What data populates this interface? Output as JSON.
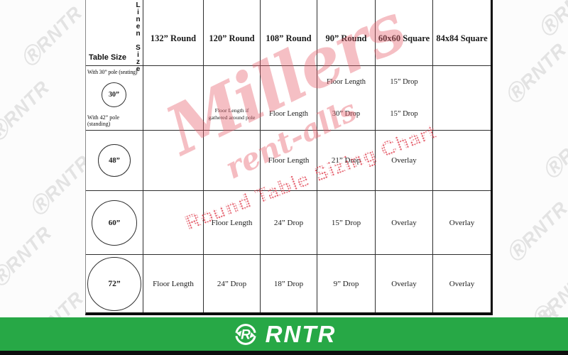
{
  "document": {
    "corner": {
      "row_label": "Table Size",
      "col_label": "Linen Size"
    },
    "columns": [
      "132” Round",
      "120” Round",
      "108” Round",
      "90” Round",
      "60x60 Square",
      "84x84 Square"
    ],
    "rows": [
      {
        "size": "30”",
        "note_top": "With 30” pole (seating)",
        "note_bottom": "With 42” pole (standing)",
        "seating": [
          "",
          "",
          "",
          "Floor Length",
          "15” Drop",
          ""
        ],
        "standing": [
          "",
          "Floor Length if gathered around pole",
          "Floor Length",
          "30” Drop",
          "15” Drop",
          ""
        ]
      },
      {
        "size": "48”",
        "cells": [
          "",
          "",
          "Floor Length",
          "21” Drop",
          "Overlay",
          ""
        ]
      },
      {
        "size": "60”",
        "cells": [
          "",
          "Floor Length",
          "24” Drop",
          "15” Drop",
          "Overlay",
          "Overlay"
        ]
      },
      {
        "size": "72”",
        "cells": [
          "Floor Length",
          "24” Drop",
          "18” Drop",
          "9” Drop",
          "Overlay",
          "Overlay"
        ]
      }
    ]
  },
  "watermarks": {
    "brand_script": "Millers",
    "brand_sub": "rent-alls",
    "chart_title": "Round Table Sizing Chart",
    "tile_text": "ⓇRNTR",
    "pink_color": "#e7606c",
    "tile_gray_color": "#e3e3e3"
  },
  "footer": {
    "brand": "RNTR",
    "icon": "recycle-r-icon",
    "green_color": "#27a846",
    "strip_color": "#0e0e0e"
  }
}
